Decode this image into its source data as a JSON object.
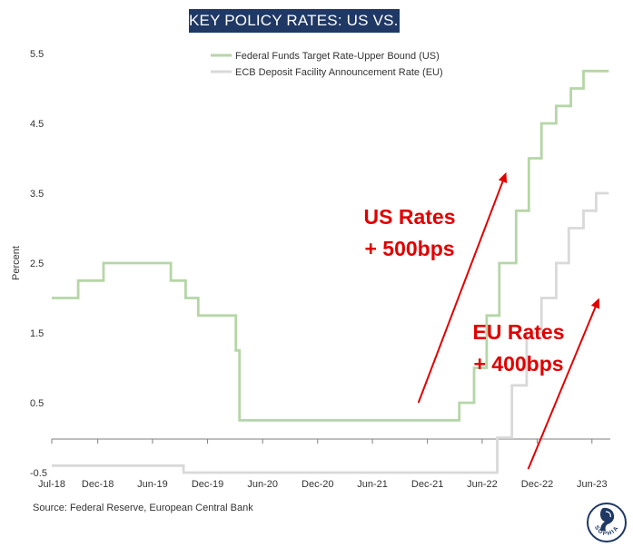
{
  "chart_data": {
    "type": "line",
    "title": "KEY POLICY RATES: US VS. EU",
    "ylabel": "Percent",
    "xlabel": "",
    "ylim": [
      -0.5,
      5.5
    ],
    "yticks": [
      5.5,
      4.5,
      3.5,
      2.5,
      1.5,
      0.5,
      -0.5
    ],
    "xlim": [
      "2018-07-01",
      "2023-08-01"
    ],
    "xticks": [
      "Jul-18",
      "Dec-18",
      "Jun-19",
      "Dec-19",
      "Jun-20",
      "Dec-20",
      "Jun-21",
      "Dec-21",
      "Jun-22",
      "Dec-22",
      "Jun-23"
    ],
    "xtick_dates": [
      "2018-07-01",
      "2018-12-01",
      "2019-06-01",
      "2019-12-01",
      "2020-06-01",
      "2020-12-01",
      "2021-06-01",
      "2021-12-01",
      "2022-06-01",
      "2022-12-01",
      "2023-06-01"
    ],
    "legend_position": "top",
    "step": true,
    "series": [
      {
        "name": "Federal Funds Target Rate-Upper Bound (US)",
        "color": "#b5d6a6",
        "points": [
          [
            "2018-07-01",
            2.0
          ],
          [
            "2018-09-27",
            2.25
          ],
          [
            "2018-12-20",
            2.5
          ],
          [
            "2019-08-01",
            2.25
          ],
          [
            "2019-09-19",
            2.0
          ],
          [
            "2019-10-31",
            1.75
          ],
          [
            "2020-03-04",
            1.25
          ],
          [
            "2020-03-16",
            0.25
          ],
          [
            "2022-03-17",
            0.5
          ],
          [
            "2022-05-05",
            1.0
          ],
          [
            "2022-06-16",
            1.75
          ],
          [
            "2022-07-28",
            2.5
          ],
          [
            "2022-09-22",
            3.25
          ],
          [
            "2022-11-03",
            4.0
          ],
          [
            "2022-12-15",
            4.5
          ],
          [
            "2023-02-02",
            4.75
          ],
          [
            "2023-03-23",
            5.0
          ],
          [
            "2023-05-04",
            5.25
          ],
          [
            "2023-07-27",
            5.25
          ]
        ]
      },
      {
        "name": "ECB Deposit Facility Announcement Rate (EU)",
        "color": "#d9d9d9",
        "points": [
          [
            "2018-07-01",
            -0.4
          ],
          [
            "2019-09-12",
            -0.5
          ],
          [
            "2022-07-21",
            0.0
          ],
          [
            "2022-09-08",
            0.75
          ],
          [
            "2022-10-27",
            1.5
          ],
          [
            "2022-12-15",
            2.0
          ],
          [
            "2023-02-02",
            2.5
          ],
          [
            "2023-03-16",
            3.0
          ],
          [
            "2023-05-04",
            3.25
          ],
          [
            "2023-06-15",
            3.5
          ],
          [
            "2023-07-27",
            3.5
          ]
        ]
      }
    ],
    "annotations": [
      {
        "line1": "US Rates",
        "line2": "+ 500bps",
        "color": "#e00000"
      },
      {
        "line1": "EU Rates",
        "line2": "+ 400bps",
        "color": "#e00000"
      }
    ],
    "arrows": [
      {
        "from": [
          "2021-11-01",
          0.5
        ],
        "to": [
          "2022-08-20",
          3.8
        ],
        "color": "#e00000"
      },
      {
        "from": [
          "2022-11-01",
          -0.45
        ],
        "to": [
          "2023-06-25",
          2.0
        ],
        "color": "#e00000"
      }
    ]
  },
  "footer": {
    "source": "Source: Federal Reserve, European Central Bank",
    "logo_text": "SOPHIA"
  }
}
